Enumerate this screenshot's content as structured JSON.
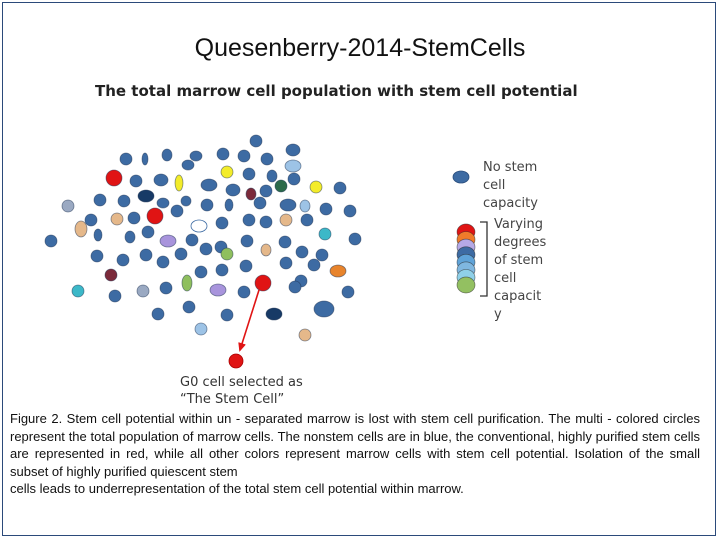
{
  "slide_title": "Quesenberry-2014-StemCells",
  "diagram": {
    "title": "The total marrow cell population with stem cell potential",
    "legend_nostem": "No stem\ncell capacity",
    "legend_varying": "Varying\ndegrees\nof stem\ncell\ncapacit\ny",
    "selected_caption": "G0 cell selected as\n“The Stem Cell”"
  },
  "colors": {
    "no_stem": "#3d6ba3",
    "stem_red": "#e01414",
    "arrow": "#e01414",
    "bracket": "#333333",
    "legend_stack": [
      "#e01414",
      "#f07b2a",
      "#b5a9e6",
      "#3d6ba3",
      "#5fa3d8",
      "#7fb7e0",
      "#8fd0e8",
      "#93c061"
    ]
  },
  "caption": {
    "line1": "Figure  2.  Stem  cell  potential   within  un - separated  marrow  is   lost   with   stem  cell  purification.  The multi - colored  circles  represent  the  total  population  of  marrow  cells.  The  nonstem  cells  are  in blue,  the  conventional,  highly  purified  stem  cells  are  represented  in  red,  while  all  other  colors represent  marrow  cells  with  stem  cell  potential.  Isolation  of  the  small  subset  of  highly  purified quiescent  stem",
    "line2": "cells  leads to  underrepresentation  of  the  total  stem cell  potential  within  marrow."
  }
}
